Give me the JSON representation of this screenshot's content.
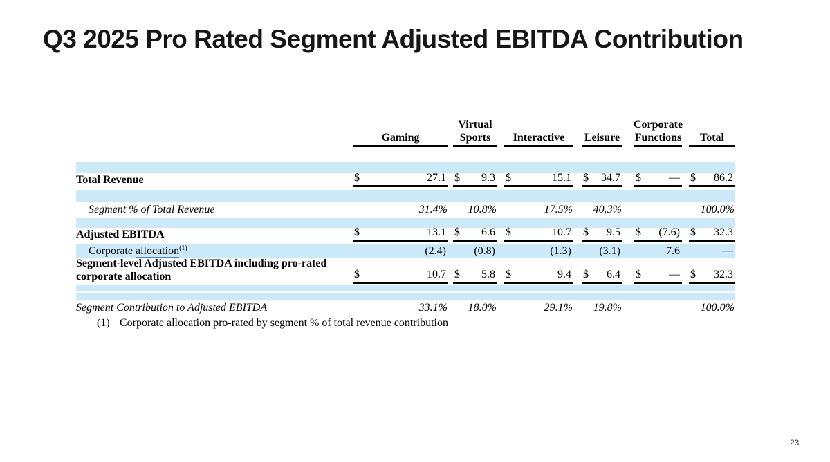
{
  "title": "Q3 2025 Pro Rated Segment Adjusted EBITDA Contribution",
  "page_number": "23",
  "colors": {
    "stripe": "#cce9f9",
    "rule": "#000000",
    "muted": "#8e9ca6",
    "link": "#4a86c8"
  },
  "footnote": {
    "marker": "(1)",
    "text": "Corporate allocation pro-rated by segment % of total revenue contribution"
  },
  "table": {
    "currency_symbol": "$",
    "headers": [
      {
        "lines": [
          "Gaming"
        ]
      },
      {
        "lines": [
          "Virtual",
          "Sports"
        ]
      },
      {
        "lines": [
          "Interactive"
        ]
      },
      {
        "lines": [
          "Leisure"
        ]
      },
      {
        "lines": [
          "Corporate",
          "Functions"
        ]
      },
      {
        "lines": [
          "Total"
        ]
      }
    ],
    "rows": {
      "total_revenue": {
        "label": "Total Revenue",
        "values": [
          "27.1",
          "9.3",
          "15.1",
          "34.7",
          "—",
          "86.2"
        ]
      },
      "segment_pct_revenue": {
        "label": "Segment % of Total Revenue",
        "values": [
          "31.4%",
          "10.8%",
          "17.5%",
          "40.3%",
          "",
          "100.0%"
        ]
      },
      "adjusted_ebitda": {
        "label": "Adjusted EBITDA",
        "values": [
          "13.1",
          "6.6",
          "10.7",
          "9.5",
          "(7.6)",
          "32.3"
        ]
      },
      "corporate_allocation": {
        "label_prefix": "Corporate ",
        "label_link": "allocation",
        "label_superscript": "(1)",
        "values": [
          "(2.4)",
          "(0.8)",
          "(1.3)",
          "(3.1)",
          "7.6",
          "—"
        ]
      },
      "segment_level_ebitda": {
        "label": "Segment-level Adjusted EBITDA including pro-rated corporate allocation",
        "values": [
          "10.7",
          "5.8",
          "9.4",
          "6.4",
          "—",
          "32.3"
        ]
      },
      "segment_contribution": {
        "label": "Segment Contribution to Adjusted EBITDA",
        "values": [
          "33.1%",
          "18.0%",
          "29.1%",
          "19.8%",
          "",
          "100.0%"
        ]
      }
    }
  }
}
